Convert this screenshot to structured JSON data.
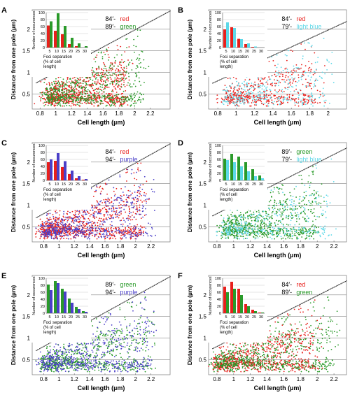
{
  "figure": {
    "shared_xlabel": "Cell length (µm)",
    "shared_ylabel": "Distance from one pole (µm)",
    "inset_ylabel": "Number of occurences",
    "inset_xlabel_lines": [
      "Foci separation",
      "(% of cell",
      "length)"
    ],
    "inset_xticks": [
      "5",
      "10",
      "15",
      "20",
      "25",
      "30"
    ],
    "inset_yticks": [
      "0",
      "20",
      "40",
      "60",
      "80",
      "100"
    ],
    "colors": {
      "red": "#e8201c",
      "green": "#2a9a2a",
      "lightblue": "#5ed8e8",
      "purple": "#4a3fc8",
      "diag": "#222222"
    }
  },
  "chart_data": [
    {
      "panel": "A",
      "type": "scatter",
      "legend": [
        {
          "label": "84′-",
          "name": "red",
          "color": "#e8201c"
        },
        {
          "label": "89′-",
          "name": "green",
          "color": "#2a9a2a"
        }
      ],
      "xlabel": "Cell length (µm)",
      "ylabel": "Distance from one pole (µm)",
      "xticks": [
        "0.8",
        "1",
        "1.2",
        "1.4",
        "1.6",
        "1.8",
        "2",
        "2.2"
      ],
      "yticks": [
        "0.5",
        "1",
        "1.5",
        "2"
      ],
      "xlim": [
        0.7,
        2.45
      ],
      "ylim": [
        0.15,
        2.45
      ],
      "series": [
        {
          "name": "red",
          "points": 900,
          "x_range": [
            0.9,
            1.9
          ],
          "near_pole_mean": 0.38,
          "mid_mean": 0.6
        },
        {
          "name": "green",
          "points": 700,
          "x_range": [
            0.9,
            2.1
          ],
          "near_pole_mean": 0.38,
          "mid_mean": 0.6
        }
      ],
      "inset_histogram": {
        "xticks": [
          "5",
          "10",
          "15",
          "20",
          "25",
          "30"
        ],
        "yrange": [
          0,
          100
        ],
        "series": [
          {
            "name": "red",
            "values": [
              63,
              48,
              38,
              10,
              4,
              0
            ]
          },
          {
            "name": "green",
            "values": [
              75,
              98,
              62,
              28,
              12,
              4
            ]
          }
        ]
      }
    },
    {
      "panel": "B",
      "type": "scatter",
      "legend": [
        {
          "label": "84′-",
          "name": "red",
          "color": "#e8201c"
        },
        {
          "label": "79′-",
          "name": "light blue",
          "color": "#5ed8e8"
        }
      ],
      "xlabel": "Cell length (µm)",
      "ylabel": "Distance from one pole (µm)",
      "xticks": [
        "0.8",
        "1",
        "1.2",
        "1.4",
        "1.6",
        "1.8",
        "2"
      ],
      "yticks": [
        "0.5",
        "1",
        "1.5",
        "2"
      ],
      "xlim": [
        0.7,
        2.2
      ],
      "ylim": [
        0.15,
        2.45
      ],
      "series": [
        {
          "name": "red",
          "points": 500,
          "x_range": [
            0.9,
            1.9
          ],
          "near_pole_mean": 0.38,
          "mid_mean": 0.6
        },
        {
          "name": "light blue",
          "points": 350,
          "x_range": [
            0.9,
            2.0
          ],
          "near_pole_mean": 0.38,
          "mid_mean": 0.6
        }
      ],
      "inset_histogram": {
        "xticks": [
          "5",
          "10",
          "15",
          "20",
          "25",
          "30"
        ],
        "yrange": [
          0,
          100
        ],
        "series": [
          {
            "name": "red",
            "values": [
              52,
              58,
              25,
              10,
              2,
              0
            ]
          },
          {
            "name": "light blue",
            "values": [
              72,
              56,
              24,
              12,
              3,
              0
            ]
          }
        ]
      }
    },
    {
      "panel": "C",
      "type": "scatter",
      "legend": [
        {
          "label": "84′-",
          "name": "red",
          "color": "#e8201c"
        },
        {
          "label": "94′-",
          "name": "purple",
          "color": "#4a3fc8"
        }
      ],
      "xlabel": "Cell length (µm)",
      "ylabel": "Distance from one pole (µm)",
      "xticks": [
        "0.8",
        "1",
        "1.2",
        "1.4",
        "1.6",
        "1.8",
        "2",
        "2.2"
      ],
      "yticks": [
        "0.5",
        "1",
        "1.5",
        "2"
      ],
      "xlim": [
        0.65,
        2.45
      ],
      "ylim": [
        0.15,
        2.45
      ],
      "series": [
        {
          "name": "red",
          "points": 900,
          "x_range": [
            0.8,
            2.1
          ],
          "near_pole_mean": 0.38,
          "mid_mean": 0.6
        },
        {
          "name": "purple",
          "points": 600,
          "x_range": [
            0.8,
            2.2
          ],
          "near_pole_mean": 0.38,
          "mid_mean": 0.6
        }
      ],
      "inset_histogram": {
        "xticks": [
          "5",
          "10",
          "15",
          "20",
          "25",
          "30"
        ],
        "yrange": [
          0,
          100
        ],
        "series": [
          {
            "name": "red",
            "values": [
              52,
              56,
              38,
              18,
              6,
              2
            ]
          },
          {
            "name": "purple",
            "values": [
              60,
              78,
              55,
              28,
              12,
              4
            ]
          }
        ]
      }
    },
    {
      "panel": "D",
      "type": "scatter",
      "legend": [
        {
          "label": "89′-",
          "name": "green",
          "color": "#2a9a2a"
        },
        {
          "label": "79′-",
          "name": "light blue",
          "color": "#5ed8e8"
        }
      ],
      "xlabel": "Cell length (µm)",
      "ylabel": "Distance from one pole (µm)",
      "xticks": [
        "0.8",
        "1",
        "1.2",
        "1.4",
        "1.6",
        "1.8",
        "2",
        "2.2"
      ],
      "yticks": [
        "0.5",
        "1",
        "1.5",
        "2"
      ],
      "xlim": [
        0.7,
        2.35
      ],
      "ylim": [
        0.15,
        2.45
      ],
      "series": [
        {
          "name": "green",
          "points": 800,
          "x_range": [
            0.9,
            2.0
          ],
          "near_pole_mean": 0.38,
          "mid_mean": 0.6
        },
        {
          "name": "light blue",
          "points": 350,
          "x_range": [
            0.9,
            2.2
          ],
          "near_pole_mean": 0.38,
          "mid_mean": 0.6
        }
      ],
      "inset_histogram": {
        "xticks": [
          "5",
          "10",
          "15",
          "20",
          "25",
          "30"
        ],
        "yrange": [
          0,
          100
        ],
        "series": [
          {
            "name": "green",
            "values": [
              62,
              76,
              68,
              52,
              32,
              14
            ]
          },
          {
            "name": "light blue",
            "values": [
              58,
              52,
              40,
              26,
              12,
              6
            ]
          }
        ]
      }
    },
    {
      "panel": "E",
      "type": "scatter",
      "legend": [
        {
          "label": "89′-",
          "name": "green",
          "color": "#2a9a2a"
        },
        {
          "label": "94′-",
          "name": "purple",
          "color": "#4a3fc8"
        }
      ],
      "xlabel": "Cell length (µm)",
      "ylabel": "Distance from one pole (µm)",
      "xticks": [
        "0.8",
        "1",
        "1.2",
        "1.4",
        "1.6",
        "1.8",
        "2",
        "2.2"
      ],
      "yticks": [
        "0.5",
        "1",
        "1.5",
        "2"
      ],
      "xlim": [
        0.65,
        2.45
      ],
      "ylim": [
        0.15,
        2.45
      ],
      "series": [
        {
          "name": "green",
          "points": 700,
          "x_range": [
            0.8,
            2.2
          ],
          "near_pole_mean": 0.38,
          "mid_mean": 0.6
        },
        {
          "name": "purple",
          "points": 600,
          "x_range": [
            0.8,
            2.2
          ],
          "near_pole_mean": 0.38,
          "mid_mean": 0.6
        }
      ],
      "inset_histogram": {
        "xticks": [
          "5",
          "10",
          "15",
          "20",
          "25",
          "30"
        ],
        "yrange": [
          0,
          100
        ],
        "series": [
          {
            "name": "green",
            "values": [
              82,
              92,
              70,
              42,
              18,
              6
            ]
          },
          {
            "name": "purple",
            "values": [
              66,
              86,
              62,
              30,
              12,
              4
            ]
          }
        ]
      }
    },
    {
      "panel": "F",
      "type": "scatter",
      "legend": [
        {
          "label": "84′-",
          "name": "red",
          "color": "#e8201c"
        },
        {
          "label": "89′-",
          "name": "green",
          "color": "#2a9a2a"
        }
      ],
      "xlabel": "Cell length (µm)",
      "ylabel": "Distance from one pole (µm)",
      "xticks": [
        "0.8",
        "1",
        "1.2",
        "1.4",
        "1.6",
        "1.8",
        "2",
        "2.2"
      ],
      "yticks": [
        "0.5",
        "1",
        "1.5",
        "2"
      ],
      "xlim": [
        0.7,
        2.35
      ],
      "ylim": [
        0.15,
        2.45
      ],
      "series": [
        {
          "name": "red",
          "points": 800,
          "x_range": [
            0.8,
            2.0
          ],
          "near_pole_mean": 0.38,
          "mid_mean": 0.6
        },
        {
          "name": "green",
          "points": 700,
          "x_range": [
            0.8,
            2.2
          ],
          "near_pole_mean": 0.38,
          "mid_mean": 0.6
        }
      ],
      "inset_histogram": {
        "xticks": [
          "5",
          "10",
          "15",
          "20",
          "25",
          "30"
        ],
        "yrange": [
          0,
          100
        ],
        "series": [
          {
            "name": "red",
            "values": [
              76,
              90,
              70,
              26,
              10,
              2
            ]
          },
          {
            "name": "green",
            "values": [
              60,
              70,
              52,
              20,
              6,
              2
            ]
          }
        ]
      }
    }
  ]
}
